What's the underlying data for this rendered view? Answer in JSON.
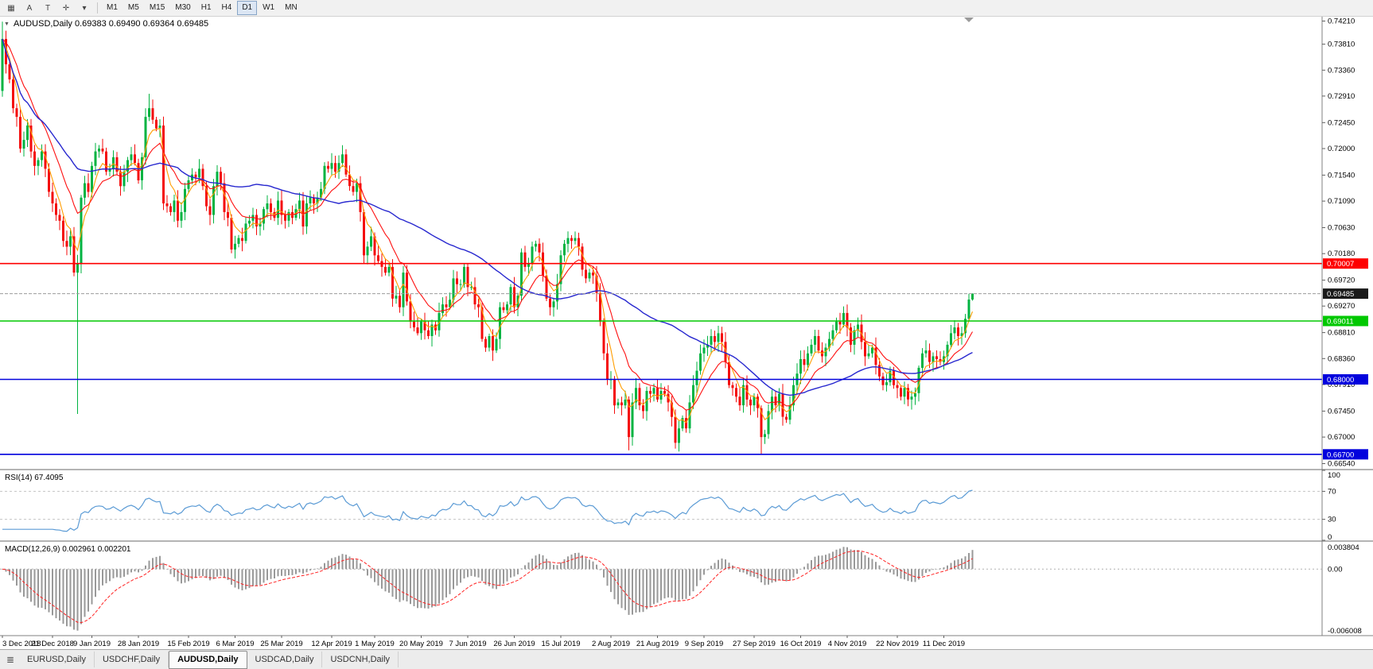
{
  "toolbar": {
    "tools": [
      {
        "name": "chart-window-icon",
        "glyph": "▦"
      },
      {
        "name": "annotation-a-tool",
        "glyph": "A"
      },
      {
        "name": "text-tool",
        "glyph": "T"
      },
      {
        "name": "crosshair-tool",
        "glyph": "✛"
      },
      {
        "name": "dropdown-caret-icon",
        "glyph": "▾"
      }
    ],
    "timeframes": [
      "M1",
      "M5",
      "M15",
      "M30",
      "H1",
      "H4",
      "D1",
      "W1",
      "MN"
    ],
    "active_timeframe": "D1"
  },
  "chart": {
    "collapse_glyph": "▼",
    "header": "AUDUSD,Daily 0.69383 0.69490 0.69364 0.69485"
  },
  "colors": {
    "candle_up": "#00b341",
    "candle_down": "#f40b0b",
    "bid_line": "#9c9c9c",
    "rsi_line": "#5b9bd5",
    "macd_hist": "#999999",
    "macd_signal": "#ff2222",
    "current_box": "#1a1a1a",
    "scale_border": "#808080"
  },
  "chart_data": {
    "type": "candlestick",
    "symbol": "AUDUSD",
    "timeframe": "Daily",
    "ohlc_display": {
      "open": "0.69383",
      "high": "0.69490",
      "low": "0.69364",
      "close": "0.69485"
    },
    "price_range": {
      "top": 0.743,
      "bottom": 0.6645
    },
    "first_open": 0.73,
    "closes": [
      0.739,
      0.7346,
      0.732,
      0.727,
      0.7255,
      0.72,
      0.7215,
      0.724,
      0.7195,
      0.717,
      0.718,
      0.7195,
      0.7165,
      0.7125,
      0.7105,
      0.7085,
      0.7075,
      0.704,
      0.703,
      0.7048,
      0.6985,
      0.7,
      0.7115,
      0.714,
      0.7125,
      0.717,
      0.7195,
      0.72,
      0.7195,
      0.716,
      0.7165,
      0.7185,
      0.716,
      0.7135,
      0.716,
      0.718,
      0.719,
      0.7175,
      0.7145,
      0.7185,
      0.7255,
      0.727,
      0.725,
      0.7235,
      0.724,
      0.7105,
      0.71,
      0.709,
      0.711,
      0.7075,
      0.709,
      0.713,
      0.7145,
      0.7155,
      0.715,
      0.7165,
      0.7135,
      0.71,
      0.7085,
      0.7135,
      0.716,
      0.714,
      0.709,
      0.708,
      0.7025,
      0.7035,
      0.7045,
      0.704,
      0.707,
      0.7075,
      0.7085,
      0.7065,
      0.707,
      0.7095,
      0.7105,
      0.709,
      0.708,
      0.711,
      0.7085,
      0.7075,
      0.709,
      0.708,
      0.7095,
      0.711,
      0.7065,
      0.7105,
      0.7115,
      0.7105,
      0.7115,
      0.713,
      0.717,
      0.7165,
      0.7175,
      0.716,
      0.7175,
      0.719,
      0.7155,
      0.7135,
      0.7125,
      0.714,
      0.709,
      0.7015,
      0.703,
      0.7048,
      0.7015,
      0.7005,
      0.6995,
      0.6985,
      0.6995,
      0.694,
      0.6945,
      0.6925,
      0.6985,
      0.6935,
      0.69,
      0.689,
      0.688,
      0.69,
      0.6885,
      0.6875,
      0.6895,
      0.6885,
      0.6915,
      0.693,
      0.6925,
      0.6938,
      0.6975,
      0.6965,
      0.6965,
      0.6995,
      0.696,
      0.696,
      0.693,
      0.6925,
      0.687,
      0.6855,
      0.6875,
      0.685,
      0.687,
      0.6925,
      0.692,
      0.693,
      0.696,
      0.6925,
      0.6945,
      0.702,
      0.6995,
      0.7,
      0.703,
      0.7035,
      0.702,
      0.698,
      0.694,
      0.6925,
      0.6935,
      0.6965,
      0.7015,
      0.7035,
      0.7045,
      0.704,
      0.7045,
      0.703,
      0.699,
      0.6975,
      0.6985,
      0.698,
      0.695,
      0.69,
      0.6845,
      0.68,
      0.68,
      0.6755,
      0.676,
      0.6755,
      0.6765,
      0.67,
      0.676,
      0.6785,
      0.6755,
      0.6745,
      0.678,
      0.6775,
      0.6785,
      0.6765,
      0.678,
      0.6775,
      0.676,
      0.6735,
      0.669,
      0.6715,
      0.6733,
      0.6715,
      0.676,
      0.679,
      0.6815,
      0.6845,
      0.6855,
      0.686,
      0.6875,
      0.6865,
      0.688,
      0.6865,
      0.683,
      0.679,
      0.6785,
      0.677,
      0.6755,
      0.679,
      0.6765,
      0.6755,
      0.677,
      0.675,
      0.67,
      0.6705,
      0.6745,
      0.677,
      0.6755,
      0.6775,
      0.6735,
      0.673,
      0.6755,
      0.679,
      0.681,
      0.6835,
      0.6825,
      0.6845,
      0.686,
      0.6875,
      0.685,
      0.684,
      0.6855,
      0.687,
      0.6885,
      0.69,
      0.6895,
      0.6915,
      0.689,
      0.686,
      0.6885,
      0.6895,
      0.6865,
      0.684,
      0.6845,
      0.6855,
      0.6825,
      0.6805,
      0.679,
      0.6795,
      0.6815,
      0.679,
      0.6785,
      0.677,
      0.6785,
      0.6765,
      0.677,
      0.6776,
      0.682,
      0.6845,
      0.685,
      0.683,
      0.684,
      0.6835,
      0.683,
      0.684,
      0.686,
      0.688,
      0.689,
      0.6875,
      0.688,
      0.6905,
      0.69383,
      0.69485
    ],
    "overrides": {
      "0": {
        "h": 0.742,
        "l": 0.729
      },
      "21": {
        "l": 0.674
      },
      "41": {
        "h": 0.7295
      },
      "42": {
        "h": 0.7285
      },
      "137": {
        "l": 0.6832
      },
      "175": {
        "l": 0.6677
      },
      "188": {
        "l": 0.668
      },
      "212": {
        "l": 0.6671
      },
      "213": {
        "l": 0.6688
      },
      "271": {
        "h": 0.6949,
        "l": 0.69364
      }
    },
    "ma": [
      {
        "period": 5,
        "type": "ema",
        "color": "#ff9d00",
        "width": 1.1
      },
      {
        "period": 13,
        "type": "ema",
        "color": "#fe1010",
        "width": 1.1
      },
      {
        "period": 50,
        "type": "sma",
        "color": "#2828cf",
        "width": 1.4
      }
    ],
    "h_lines": [
      {
        "price": 0.70007,
        "color": "#fe0000",
        "label": "0.70007"
      },
      {
        "price": 0.69011,
        "color": "#00c800",
        "label": "0.69011"
      },
      {
        "price": 0.68,
        "color": "#0202dd",
        "label": "0.68000"
      },
      {
        "price": 0.667,
        "color": "#0202dd",
        "label": "0.66700"
      }
    ],
    "current_price": {
      "value": 0.69485,
      "label": "0.69485"
    },
    "y_ticks": [
      "0.74210",
      "0.73810",
      "0.73360",
      "0.72910",
      "0.72450",
      "0.72000",
      "0.71540",
      "0.71090",
      "0.70630",
      "0.70180",
      "0.69720",
      "0.69270",
      "0.68810",
      "0.68360",
      "0.67910",
      "0.67450",
      "0.67000",
      "0.66540"
    ],
    "x_ticks": [
      {
        "i": 0,
        "label": "3 Dec 2018"
      },
      {
        "i": 14,
        "label": "21 Dec 2018"
      },
      {
        "i": 25,
        "label": "9 Jan 2019"
      },
      {
        "i": 38,
        "label": "28 Jan 2019"
      },
      {
        "i": 52,
        "label": "15 Feb 2019"
      },
      {
        "i": 65,
        "label": "6 Mar 2019"
      },
      {
        "i": 78,
        "label": "25 Mar 2019"
      },
      {
        "i": 92,
        "label": "12 Apr 2019"
      },
      {
        "i": 104,
        "label": "1 May 2019"
      },
      {
        "i": 117,
        "label": "20 May 2019"
      },
      {
        "i": 130,
        "label": "7 Jun 2019"
      },
      {
        "i": 143,
        "label": "26 Jun 2019"
      },
      {
        "i": 156,
        "label": "15 Jul 2019"
      },
      {
        "i": 170,
        "label": "2 Aug 2019"
      },
      {
        "i": 183,
        "label": "21 Aug 2019"
      },
      {
        "i": 196,
        "label": "9 Sep 2019"
      },
      {
        "i": 210,
        "label": "27 Sep 2019"
      },
      {
        "i": 223,
        "label": "16 Oct 2019"
      },
      {
        "i": 236,
        "label": "4 Nov 2019"
      },
      {
        "i": 250,
        "label": "22 Nov 2019"
      },
      {
        "i": 263,
        "label": "11 Dec 2019"
      }
    ],
    "rsi": {
      "period": 14,
      "label": "RSI(14) 67.4095",
      "value": "67.4095",
      "levels": [
        70,
        30
      ],
      "scale_ticks": [
        {
          "v": 100,
          "label": "100"
        },
        {
          "v": 70,
          "label": "70"
        },
        {
          "v": 30,
          "label": "30"
        },
        {
          "v": 0,
          "label": "0"
        }
      ]
    },
    "macd": {
      "fast": 12,
      "slow": 26,
      "signal": 9,
      "label": "MACD(12,26,9) 0.002961 0.002201",
      "value_main": "0.002961",
      "value_signal": "0.002201",
      "tick_top": "0.003804",
      "tick_zero": "0.00",
      "tick_bottom": "-0.006008"
    }
  },
  "tabs": {
    "icon_glyph": "≣",
    "items": [
      "EURUSD,Daily",
      "USDCHF,Daily",
      "AUDUSD,Daily",
      "USDCAD,Daily",
      "USDCNH,Daily"
    ],
    "active_index": 2
  }
}
